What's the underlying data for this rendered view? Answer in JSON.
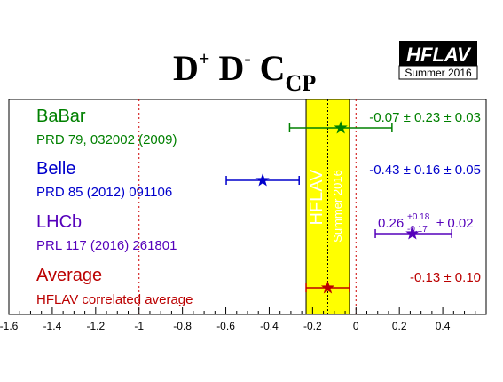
{
  "title": {
    "main": "D",
    "sup1": "+",
    "mid": " D",
    "sup2": "-",
    "c": " C",
    "sub": "CP"
  },
  "logo": {
    "name": "HFLAV",
    "period": "Summer 2016"
  },
  "band_labels": {
    "primary": "HFLAV",
    "secondary": "Summer 2016"
  },
  "colors": {
    "babar": "#008000",
    "belle": "#0000cc",
    "lhcb": "#5500bb",
    "average": "#bb0000",
    "band": "#ffff00",
    "band_text": "#ffffff",
    "ref_line": "#cc0000"
  },
  "chart_data": {
    "type": "scatter",
    "title": "D+ D- CCP",
    "xlim": [
      -1.6,
      0.6
    ],
    "x_ticks": [
      "-1.6",
      "-1.4",
      "-1.2",
      "-1",
      "-0.8",
      "-0.6",
      "-0.4",
      "-0.2",
      "0",
      "0.2",
      "0.4"
    ],
    "x_tick_values": [
      -1.6,
      -1.4,
      -1.2,
      -1.0,
      -0.8,
      -0.6,
      -0.4,
      -0.2,
      0.0,
      0.2,
      0.4
    ],
    "reference_lines": [
      -1,
      0
    ],
    "band": {
      "center": -0.13,
      "low": -0.23,
      "high": -0.03
    },
    "measurements": [
      {
        "key": "babar",
        "experiment": "BaBar",
        "reference": "PRD 79, 032002 (2009)",
        "value": -0.07,
        "err_low": 0.236,
        "err_high": 0.236,
        "result_text": "-0.07 ± 0.23 ± 0.03",
        "central": "",
        "sup": "",
        "sub": "",
        "syst": ""
      },
      {
        "key": "belle",
        "experiment": "Belle",
        "reference": "PRD 85 (2012) 091106",
        "value": -0.43,
        "err_low": 0.168,
        "err_high": 0.168,
        "result_text": "-0.43 ± 0.16 ± 0.05",
        "central": "",
        "sup": "",
        "sub": "",
        "syst": ""
      },
      {
        "key": "lhcb",
        "experiment": "LHCb",
        "reference": "PRL 117 (2016) 261801",
        "value": 0.26,
        "err_low": 0.171,
        "err_high": 0.181,
        "result_text": "",
        "central": "0.26",
        "sup": "+0.18",
        "sub": "-0.17",
        "syst": "± 0.02"
      },
      {
        "key": "average",
        "experiment": "Average",
        "reference": "HFLAV correlated average",
        "value": -0.13,
        "err_low": 0.1,
        "err_high": 0.1,
        "result_text": "-0.13 ± 0.10",
        "central": "",
        "sup": "",
        "sub": "",
        "syst": ""
      }
    ]
  }
}
